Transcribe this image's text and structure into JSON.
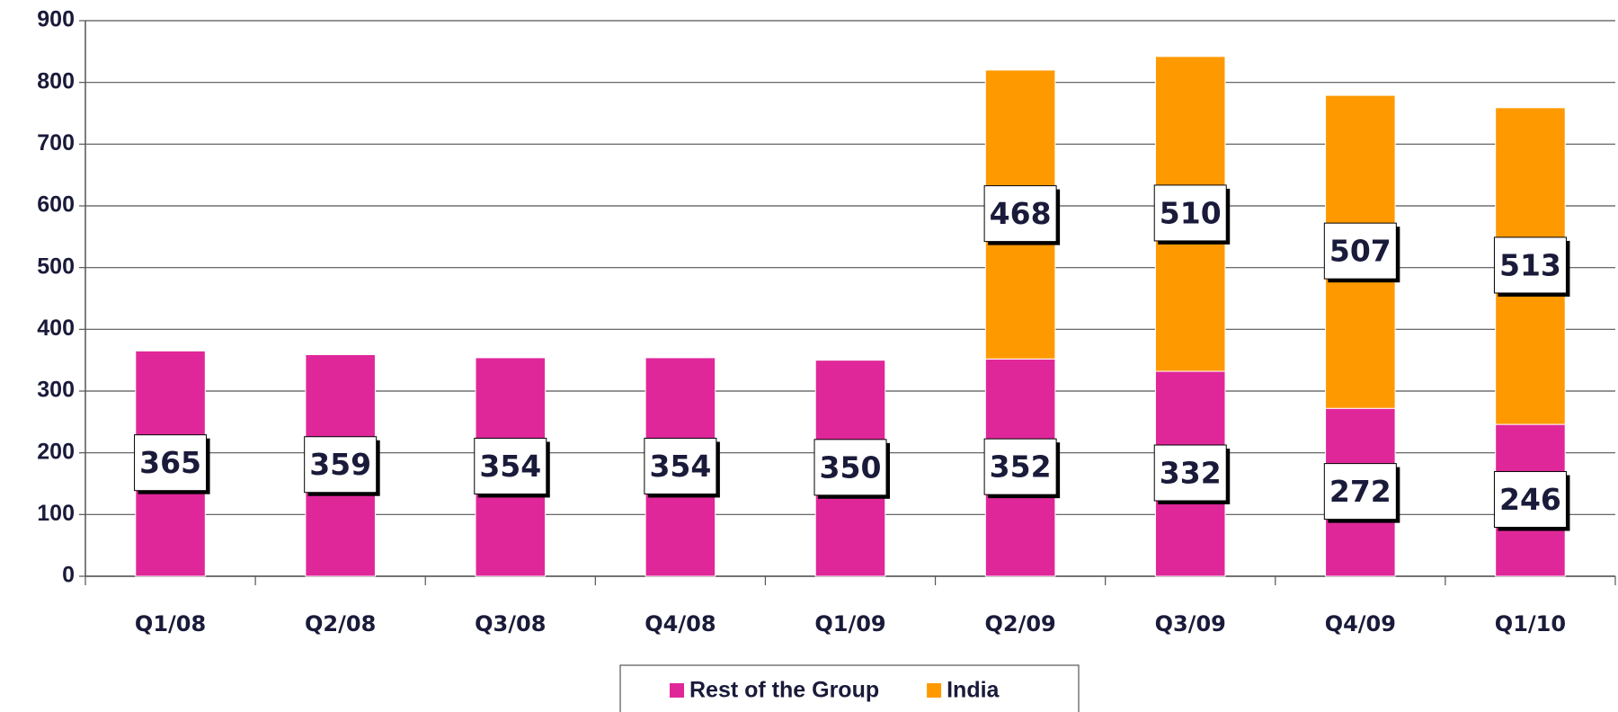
{
  "chart_data": {
    "type": "stacked_bar",
    "categories": [
      "Q1/08",
      "Q2/08",
      "Q3/08",
      "Q4/08",
      "Q1/09",
      "Q2/09",
      "Q3/09",
      "Q4/09",
      "Q1/10"
    ],
    "series": [
      {
        "name": "Rest of the Group",
        "color": "#e0279a",
        "values": [
          365,
          359,
          354,
          354,
          350,
          352,
          332,
          272,
          246
        ]
      },
      {
        "name": "India",
        "color": "#ff9900",
        "values": [
          null,
          null,
          null,
          null,
          null,
          468,
          510,
          507,
          513
        ]
      }
    ],
    "ylim": [
      0,
      900
    ],
    "yticks": [
      0,
      100,
      200,
      300,
      400,
      500,
      600,
      700,
      800,
      900
    ],
    "grid": true,
    "legend": "bottom"
  }
}
